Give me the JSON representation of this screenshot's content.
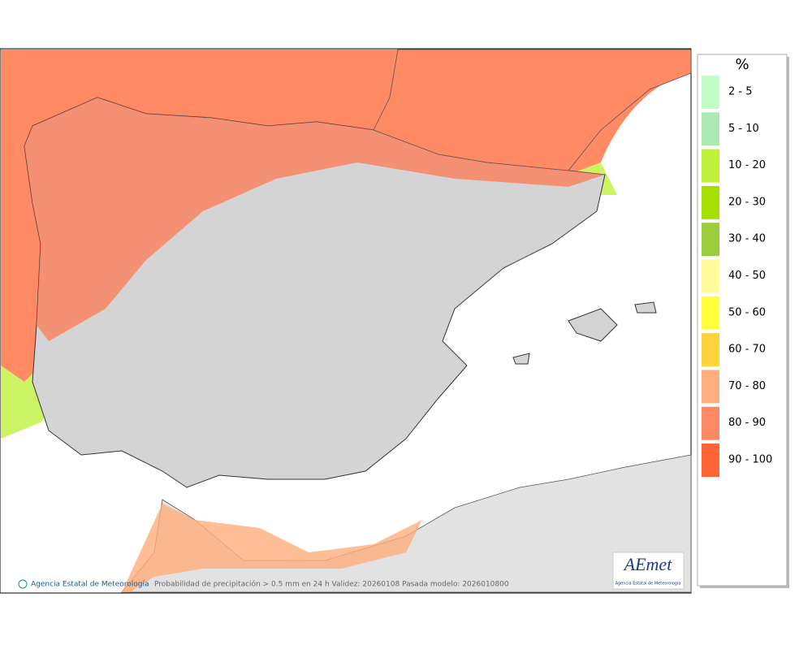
{
  "map": {
    "footer": {
      "agency": "Agencia Estatal de Meteorología",
      "caption": "Probabilidad de precipitación > 0.5 mm en 24 h Validez: 20260108 Pasada modelo: 2026010800"
    },
    "logo": {
      "name": "AEmet",
      "subtitle": "Agencia Estatal de Meteorología"
    },
    "legend": {
      "title": "%",
      "items": [
        {
          "label": "2 - 5",
          "color": "#c2fcc6"
        },
        {
          "label": "5 - 10",
          "color": "#ace8b4"
        },
        {
          "label": "10 - 20",
          "color": "#bef03c"
        },
        {
          "label": "20 - 30",
          "color": "#a6e000"
        },
        {
          "label": "30 - 40",
          "color": "#9acc3c"
        },
        {
          "label": "40 - 50",
          "color": "#fffa9a"
        },
        {
          "label": "50 - 60",
          "color": "#ffff3c"
        },
        {
          "label": "60 - 70",
          "color": "#ffd23c"
        },
        {
          "label": "70 - 80",
          "color": "#ffae7c"
        },
        {
          "label": "80 - 90",
          "color": "#ff8a64"
        },
        {
          "label": "90 - 100",
          "color": "#ff6434"
        }
      ]
    }
  }
}
